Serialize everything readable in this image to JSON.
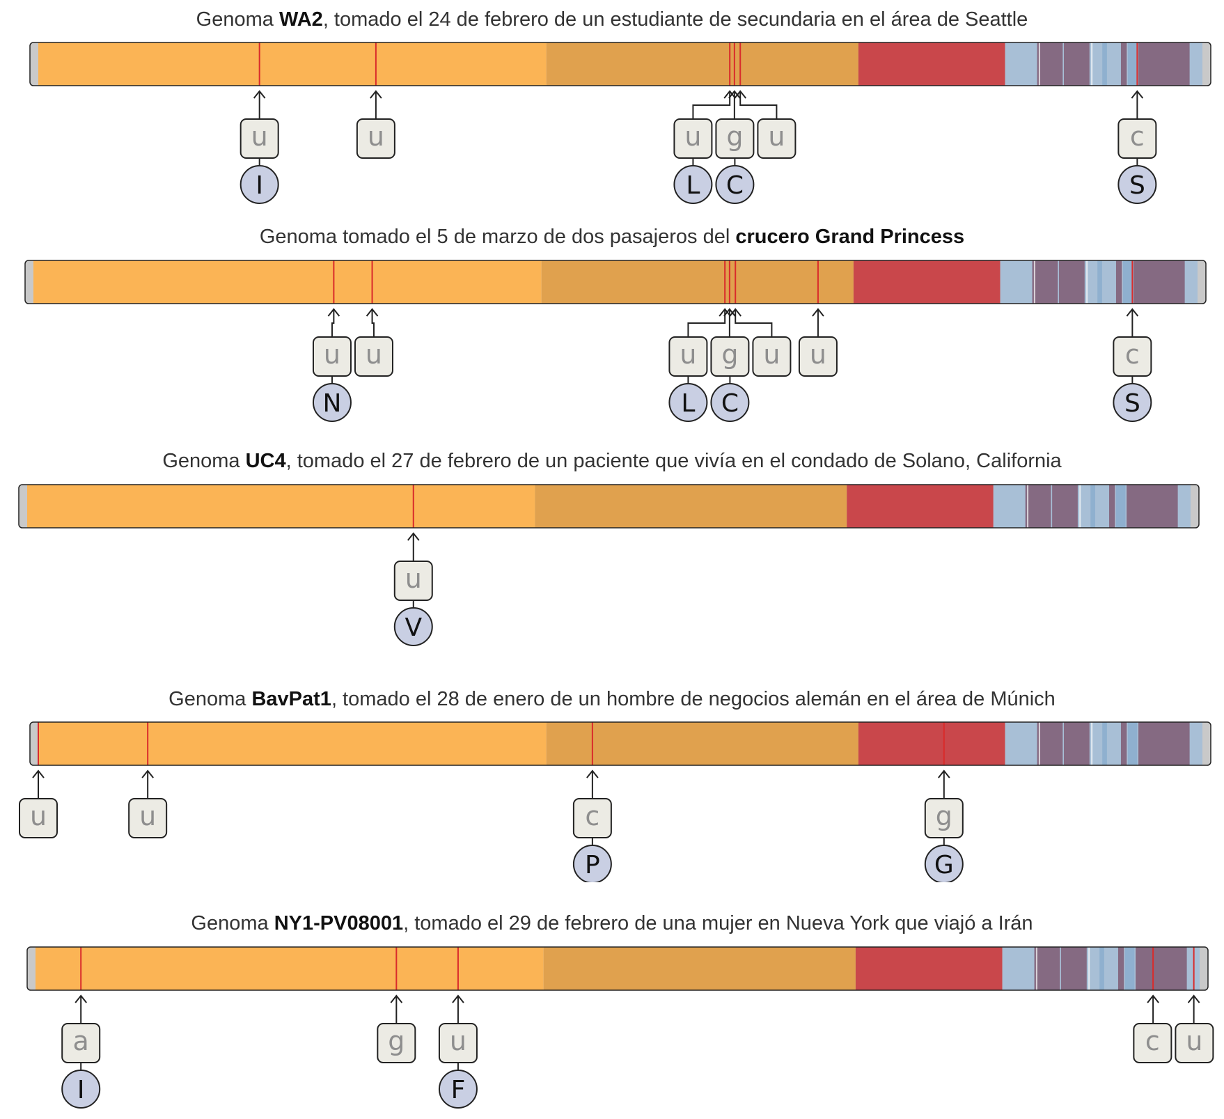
{
  "colors": {
    "seg1": "#fbb455",
    "seg2": "#e0a14e",
    "seg3": "#c9474b",
    "seg4": "#a8bfd6",
    "seg5": "#856a82",
    "cap": "#c9c9c9",
    "mutation": "#d92b2b",
    "box_fill": "#ecebe4",
    "circle_fill": "#c9cfe3",
    "stroke": "#222222"
  },
  "genomes": [
    {
      "title_pre": "Genoma ",
      "title_bold": "WA2",
      "title_post": ", tomado el 24 de febrero de un estudiante de secundaria en el área de Seattle",
      "mutations": [
        {
          "pos": 0.19,
          "base": "u",
          "aa": "I"
        },
        {
          "pos": 0.29,
          "base": "u",
          "aa": ""
        },
        {
          "pos": 0.594,
          "base": "u",
          "aa": "L"
        },
        {
          "pos": 0.598,
          "base": "g",
          "aa": "C"
        },
        {
          "pos": 0.603,
          "base": "u",
          "aa": ""
        },
        {
          "pos": 0.944,
          "base": "c",
          "aa": "S"
        }
      ]
    },
    {
      "title_pre": "Genoma tomado el 5 de marzo de dos pasajeros del ",
      "title_bold": "crucero Grand Princess",
      "title_post": "",
      "mutations": [
        {
          "pos": 0.258,
          "base": "u",
          "aa": "N"
        },
        {
          "pos": 0.291,
          "base": "u",
          "aa": ""
        },
        {
          "pos": 0.594,
          "base": "u",
          "aa": "L"
        },
        {
          "pos": 0.598,
          "base": "g",
          "aa": "C"
        },
        {
          "pos": 0.603,
          "base": "u",
          "aa": ""
        },
        {
          "pos": 0.674,
          "base": "u",
          "aa": ""
        },
        {
          "pos": 0.944,
          "base": "c",
          "aa": "S"
        }
      ]
    },
    {
      "title_pre": "Genoma ",
      "title_bold": "UC4",
      "title_post": ", tomado el 27 de febrero de un paciente que vivía en el condado de Solano, California",
      "mutations": [
        {
          "pos": 0.332,
          "base": "u",
          "aa": "V"
        }
      ]
    },
    {
      "title_pre": "Genoma ",
      "title_bold": "BavPat1",
      "title_post": ", tomado el 28 de enero de un hombre de negocios alemán en el área de Múnich",
      "mutations": [
        {
          "pos": 0.0,
          "base": "u",
          "aa": ""
        },
        {
          "pos": 0.094,
          "base": "u",
          "aa": ""
        },
        {
          "pos": 0.476,
          "base": "c",
          "aa": "P"
        },
        {
          "pos": 0.778,
          "base": "g",
          "aa": "G"
        }
      ]
    },
    {
      "title_pre": "Genoma ",
      "title_bold": "NY1-PV08001",
      "title_post": ", tomado el 29 de febrero de una mujer en Nueva York que viajó a Irán",
      "mutations": [
        {
          "pos": 0.039,
          "base": "a",
          "aa": "I"
        },
        {
          "pos": 0.31,
          "base": "g",
          "aa": ""
        },
        {
          "pos": 0.363,
          "base": "u",
          "aa": "F"
        },
        {
          "pos": 0.96,
          "base": "c",
          "aa": ""
        },
        {
          "pos": 0.995,
          "base": "u",
          "aa": ""
        }
      ]
    }
  ]
}
